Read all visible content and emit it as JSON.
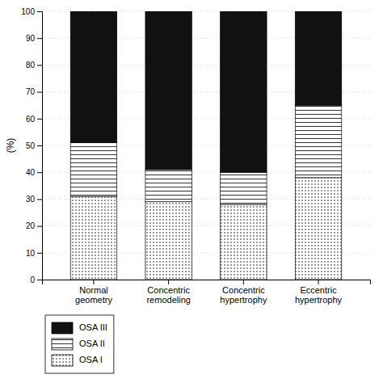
{
  "chart_data": {
    "type": "bar",
    "stacked": true,
    "categories": [
      "Normal\ngeometry",
      "Concentric\nremodeling",
      "Concentric\nhypertrophy",
      "Eccentric\nhypertrophy"
    ],
    "series": [
      {
        "name": "OSA I",
        "color": "#ffffff",
        "values": [
          31,
          29,
          28,
          38
        ]
      },
      {
        "name": "OSA II",
        "color": "#ffffff",
        "values": [
          20,
          12,
          12,
          27
        ]
      },
      {
        "name": "OSA III",
        "color": "#111111",
        "values": [
          49,
          59,
          60,
          35
        ]
      }
    ],
    "y_label": "(%)",
    "ylim": [
      0,
      100
    ],
    "yticks": [
      0,
      10,
      20,
      30,
      40,
      50,
      60,
      70,
      80,
      90,
      100
    ],
    "grid": true,
    "legend": "bottom"
  }
}
